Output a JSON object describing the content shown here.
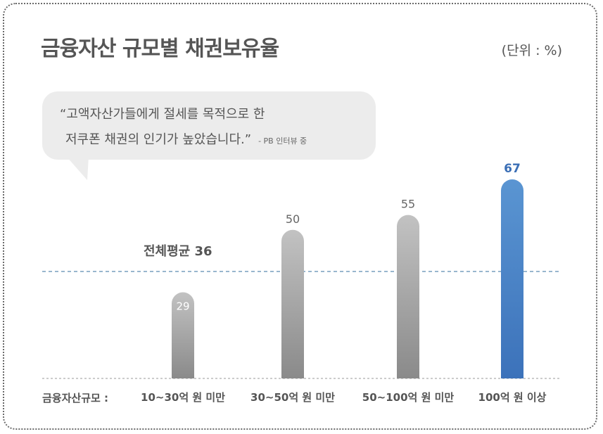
{
  "title": "금융자산 규모별 채권보유율",
  "unit": "(단위 : %)",
  "quote": {
    "line1": "“고액자산가들에게 절세를 목적으로 한",
    "line2": "저쿠폰 채권의 인기가 높았습니다.”",
    "source": "- PB 인터뷰 중"
  },
  "average": {
    "label": "전체평균 36",
    "value": 36
  },
  "chart_data": {
    "type": "bar",
    "xlabel": "금융자산규모 :",
    "categories": [
      "10~30억 원 미만",
      "30~50억 원 미만",
      "50~100억 원 미만",
      "100억 원 이상"
    ],
    "values": [
      29,
      50,
      55,
      67
    ],
    "value_labels": [
      "29",
      "50",
      "55",
      "67"
    ],
    "highlight_index": 3,
    "grid": false
  },
  "colors": {
    "text": "#555555",
    "bar_gray_top": "#c2c2c2",
    "bar_gray_bottom": "#8a8a8a",
    "bar_blue_top": "#5a95d2",
    "bar_blue_bottom": "#3c72ba",
    "highlight_label": "#3b6fb6",
    "average_line": "#4a7fa8",
    "baseline": "#9a9a9a"
  }
}
